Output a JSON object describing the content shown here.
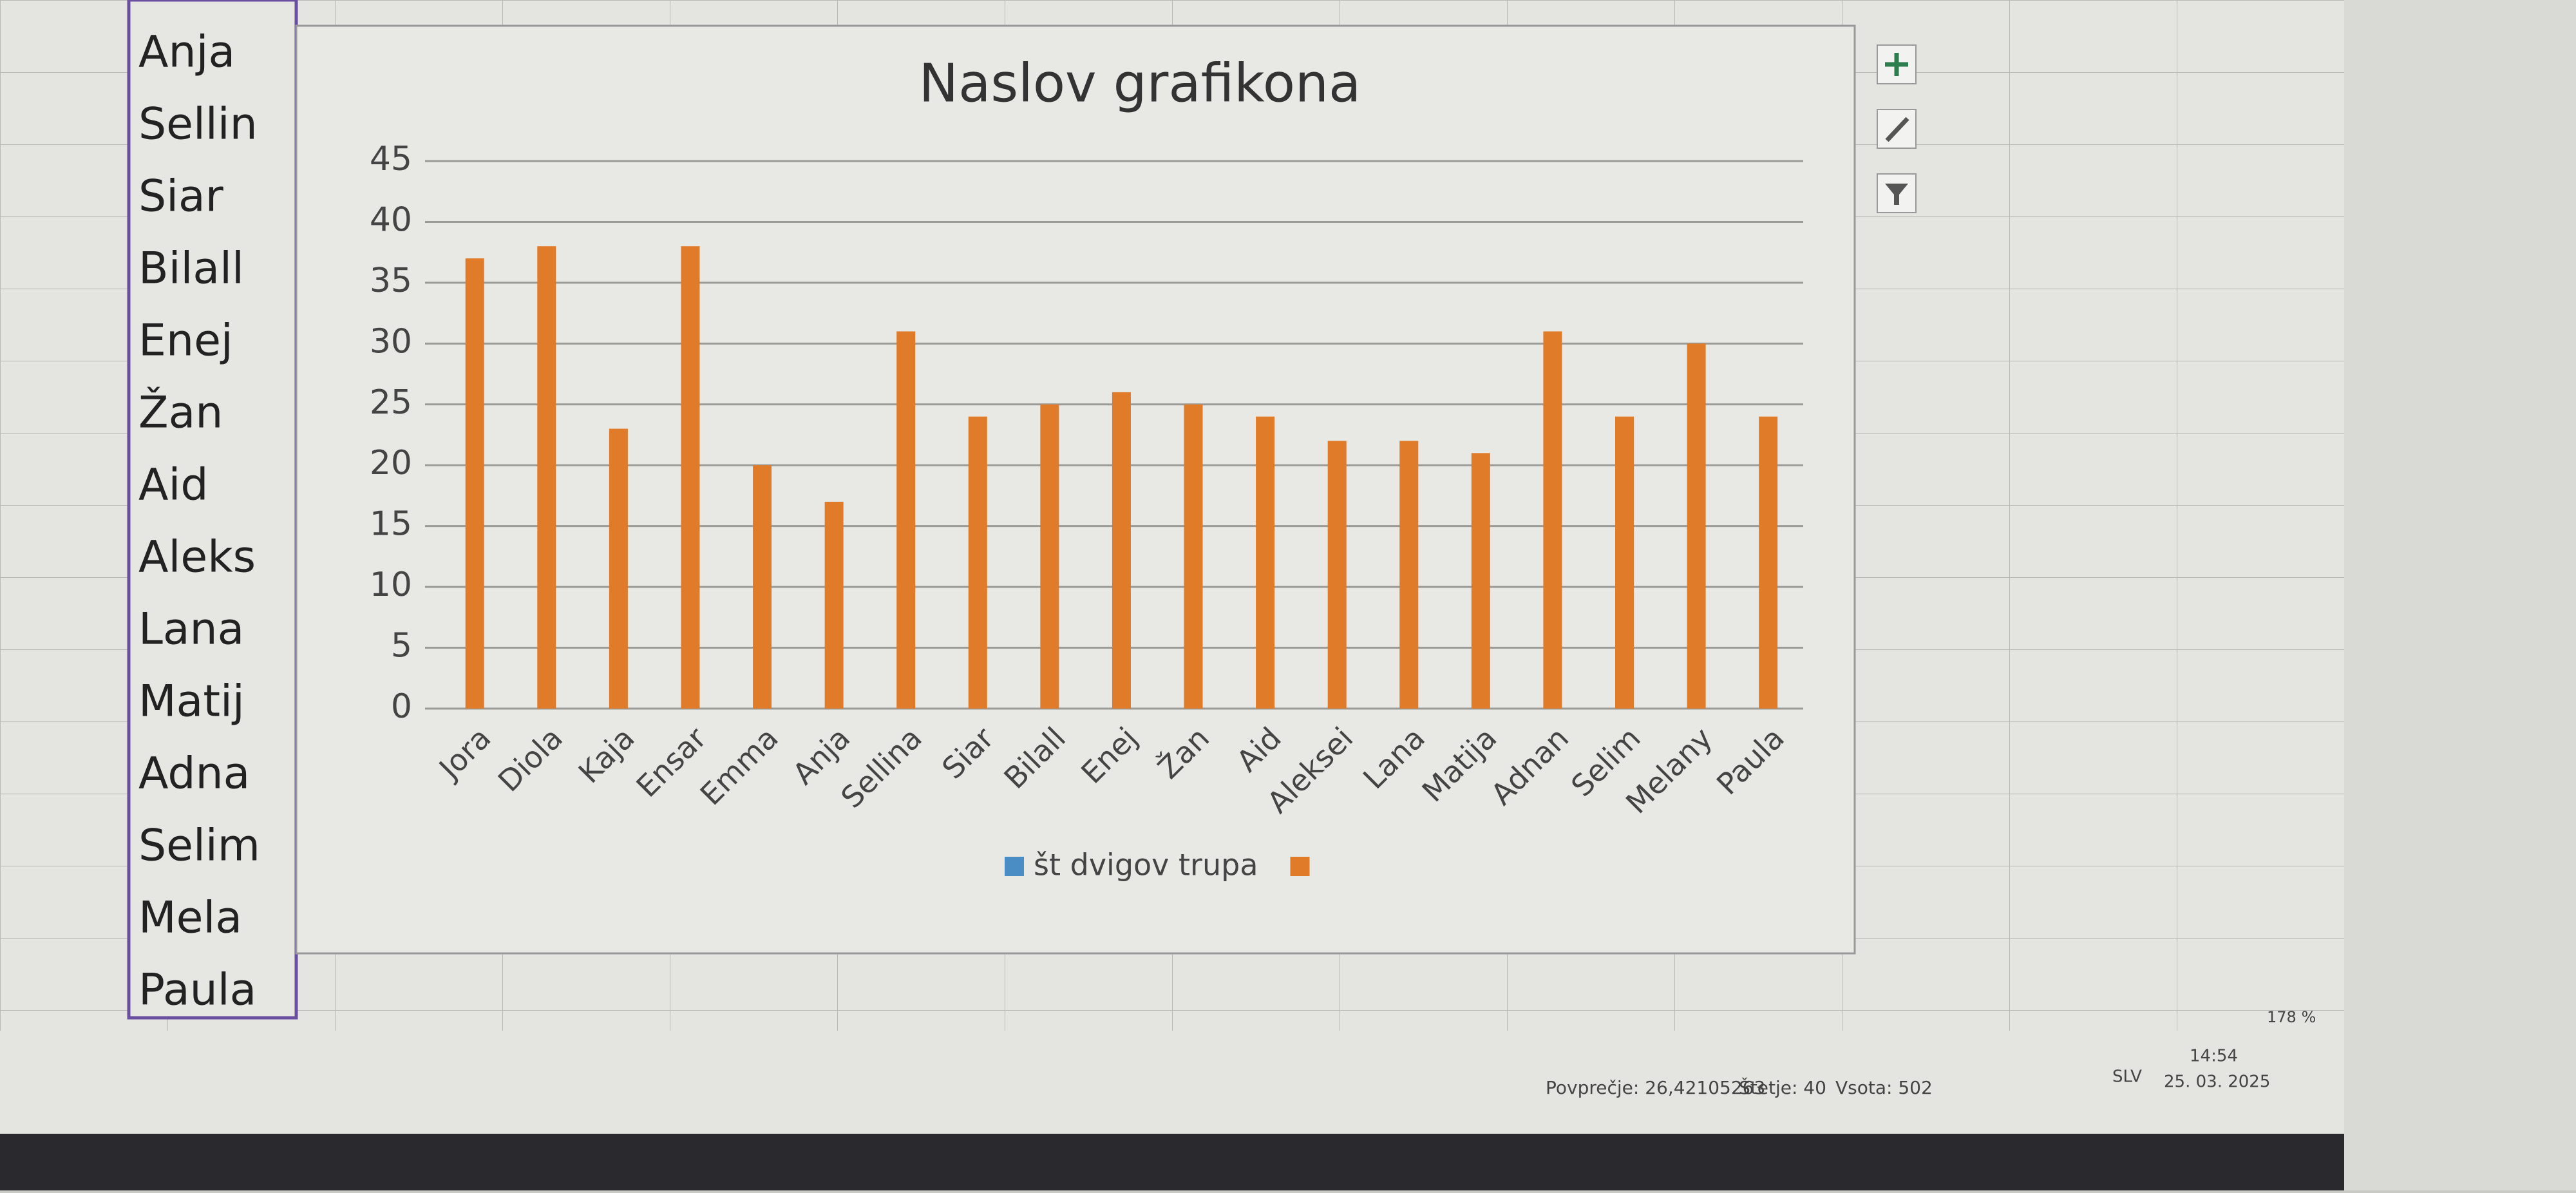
{
  "chart_data": {
    "type": "bar",
    "title": "Naslov grafikona",
    "categories": [
      "Jora",
      "Diola",
      "Kaja",
      "Ensar",
      "Emma",
      "Anja",
      "Sellina",
      "Siar",
      "Bilall",
      "Enej",
      "Žan",
      "Aid",
      "Aleksei",
      "Lana",
      "Matija",
      "Adnan",
      "Selim",
      "Melany",
      "Paula"
    ],
    "series": [
      {
        "name": "št dvigov trupa",
        "color": "#4a8cc4",
        "values": [
          null,
          null,
          null,
          null,
          null,
          null,
          null,
          null,
          null,
          null,
          null,
          null,
          null,
          null,
          null,
          null,
          null,
          null,
          null
        ]
      },
      {
        "color": "#e07b2a",
        "values": [
          37,
          38,
          23,
          38,
          20,
          17,
          31,
          24,
          25,
          26,
          25,
          24,
          22,
          22,
          21,
          31,
          24,
          30,
          24
        ]
      }
    ],
    "ylim": [
      0,
      45
    ],
    "yticks": [
      0,
      5,
      10,
      15,
      20,
      25,
      30,
      35,
      40,
      45
    ],
    "grid": true
  },
  "sheet": {
    "names": [
      "Anja",
      "Sellin",
      "Siar",
      "Bilall",
      "Enej",
      "Žan",
      "Aid",
      "Aleks",
      "Lana",
      "Matij",
      "Adna",
      "Selim",
      "Mela",
      "Paula"
    ]
  },
  "status_bar": {
    "average": "Povprečje: 26,42105263",
    "count": "Štetje: 40",
    "sum": "Vsota: 502",
    "zoom": "178 %"
  },
  "taskbar": {
    "language": "SLV",
    "time": "14:54",
    "date": "25. 03. 2025"
  }
}
